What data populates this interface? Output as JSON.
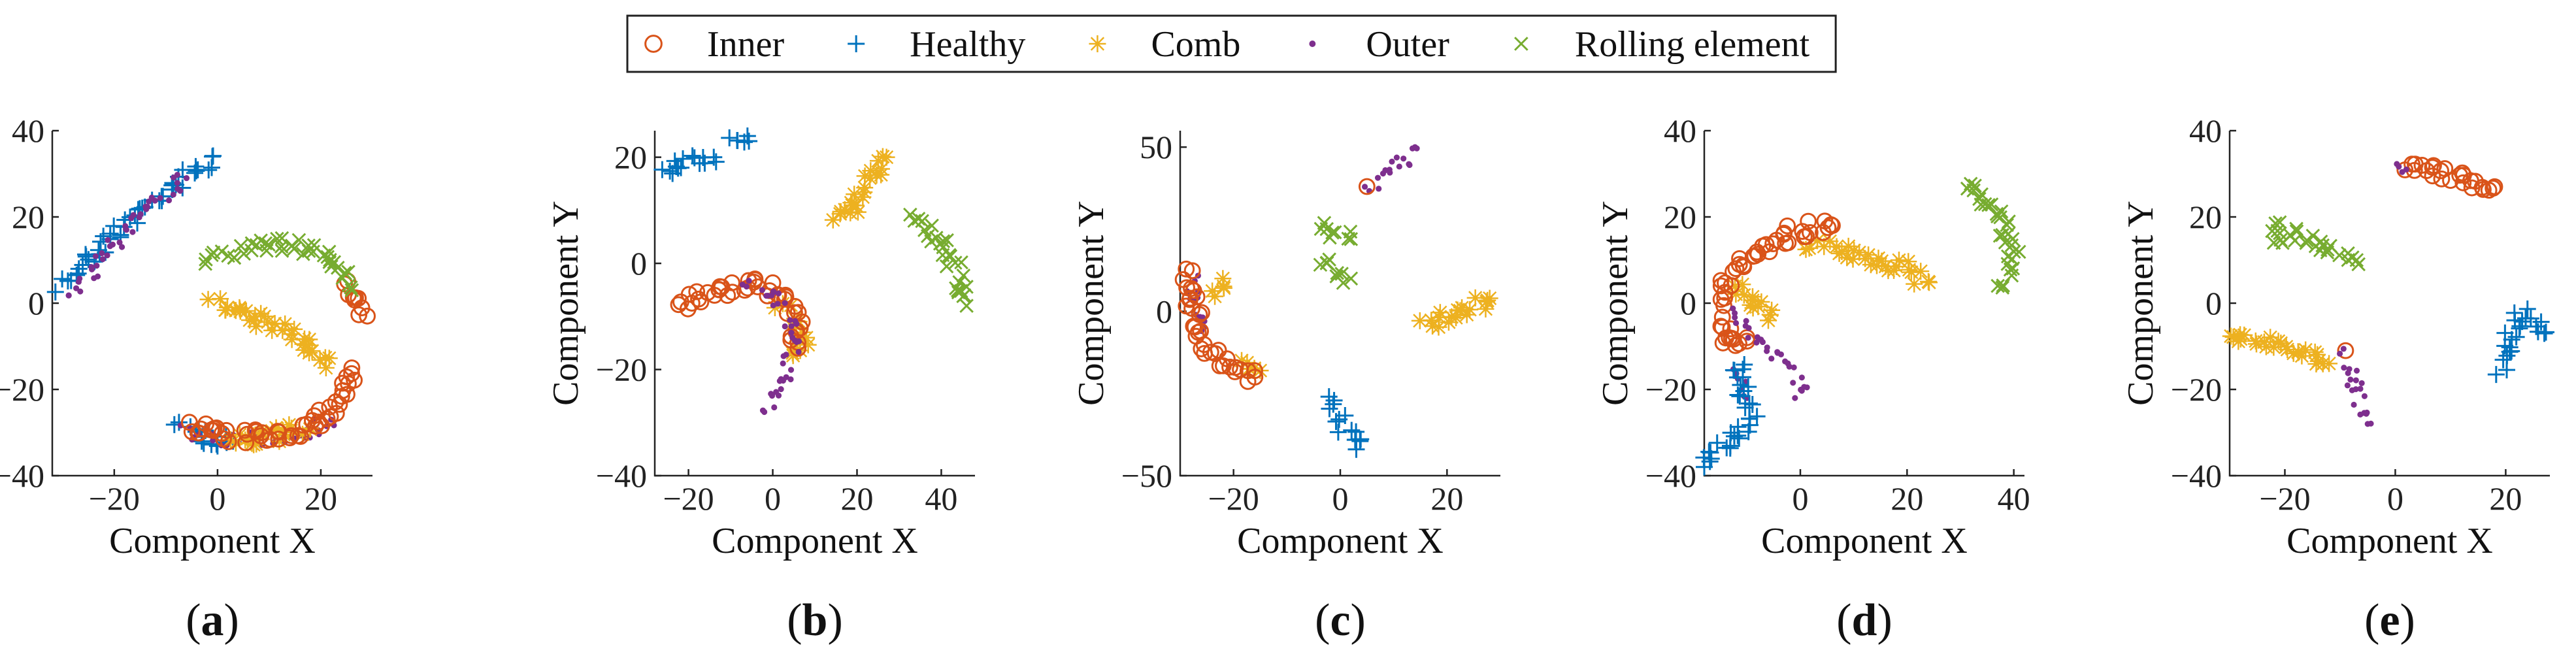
{
  "legend": {
    "position": "top-center",
    "entries": [
      {
        "name": "Inner",
        "marker": "circle-marker",
        "color": "#D95319"
      },
      {
        "name": "Healthy",
        "marker": "plus-marker",
        "color": "#0072BD"
      },
      {
        "name": "Comb",
        "marker": "asterisk-marker",
        "color": "#EDB120"
      },
      {
        "name": "Outer",
        "marker": "dot-marker",
        "color": "#7E2F8E"
      },
      {
        "name": "Rolling element",
        "marker": "cross-marker",
        "color": "#77AC30"
      }
    ]
  },
  "chart_data": [
    {
      "type": "scatter",
      "label": "(a)",
      "xlabel": "Component X",
      "ylabel": "Component Y",
      "xlim": [
        -32,
        30
      ],
      "ylim": [
        -40,
        40
      ],
      "xticks": [
        -20,
        0,
        20
      ],
      "yticks": [
        -40,
        -20,
        0,
        20,
        40
      ],
      "series": [
        {
          "name": "Healthy",
          "segments": [
            [
              [
                -30,
                4
              ],
              [
                -24,
                12
              ],
              [
                -16,
                20
              ],
              [
                -10,
                26
              ],
              [
                -4,
                31
              ],
              [
                -1,
                34
              ]
            ],
            [
              [
                -7,
                -29
              ],
              [
                -2,
                -31
              ],
              [
                3,
                -32
              ]
            ]
          ]
        },
        {
          "name": "Outer",
          "segments": [
            [
              [
                -28,
                2
              ],
              [
                -22,
                12
              ],
              [
                -14,
                22
              ],
              [
                -6,
                29
              ]
            ],
            [
              [
                -6,
                -30
              ],
              [
                4,
                -32
              ],
              [
                14,
                -31
              ],
              [
                22,
                -27
              ]
            ]
          ]
        },
        {
          "name": "Comb",
          "segments": [
            [
              [
                -1,
                0
              ],
              [
                6,
                -3
              ],
              [
                12,
                -6
              ],
              [
                17,
                -9
              ],
              [
                21,
                -15
              ]
            ],
            [
              [
                2,
                -32
              ],
              [
                10,
                -31
              ],
              [
                18,
                -29
              ]
            ]
          ]
        },
        {
          "name": "Inner",
          "segments": [
            [
              [
                -6,
                -28
              ],
              [
                2,
                -31
              ],
              [
                8,
                -31
              ],
              [
                14,
                -30
              ],
              [
                20,
                -27
              ],
              [
                24,
                -22
              ],
              [
                26,
                -15
              ]
            ],
            [
              [
                25,
                4
              ],
              [
                27,
                0
              ],
              [
                29,
                -3
              ]
            ]
          ]
        },
        {
          "name": "Rolling element",
          "segments": [
            [
              [
                -2,
                10
              ],
              [
                4,
                12
              ],
              [
                10,
                14
              ],
              [
                16,
                13
              ],
              [
                21,
                11
              ],
              [
                25,
                7
              ],
              [
                26,
                3
              ]
            ]
          ]
        }
      ]
    },
    {
      "type": "scatter",
      "label": "(b)",
      "xlabel": "Component X",
      "ylabel": "Component Y",
      "xlim": [
        -28,
        48
      ],
      "ylim": [
        -40,
        25
      ],
      "xticks": [
        -20,
        0,
        20,
        40
      ],
      "yticks": [
        -40,
        -20,
        0,
        20
      ],
      "series": [
        {
          "name": "Healthy",
          "segments": [
            [
              [
                -26,
                18
              ],
              [
                -20,
                19
              ],
              [
                -14,
                20
              ]
            ],
            [
              [
                -10,
                22
              ],
              [
                -6,
                24
              ]
            ]
          ]
        },
        {
          "name": "Comb",
          "segments": [
            [
              [
                15,
                8
              ],
              [
                20,
                12
              ],
              [
                25,
                18
              ],
              [
                27,
                20
              ]
            ],
            [
              [
                2,
                -8
              ],
              [
                5,
                -11
              ],
              [
                7,
                -13
              ]
            ],
            [
              [
                6,
                -18
              ],
              [
                8,
                -14
              ]
            ]
          ]
        },
        {
          "name": "Rolling element",
          "segments": [
            [
              [
                33,
                9
              ],
              [
                38,
                6
              ],
              [
                42,
                1
              ],
              [
                45,
                -4
              ],
              [
                46,
                -8
              ]
            ]
          ]
        },
        {
          "name": "Inner",
          "segments": [
            [
              [
                -22,
                -8
              ],
              [
                -16,
                -6
              ],
              [
                -10,
                -5
              ],
              [
                -4,
                -4
              ],
              [
                0,
                -5
              ],
              [
                4,
                -7
              ],
              [
                6,
                -12
              ],
              [
                6,
                -16
              ]
            ]
          ]
        },
        {
          "name": "Outer",
          "segments": [
            [
              [
                -6,
                -4
              ],
              [
                0,
                -6
              ],
              [
                4,
                -10
              ],
              [
                5,
                -16
              ],
              [
                3,
                -22
              ],
              [
                -2,
                -28
              ]
            ]
          ]
        }
      ]
    },
    {
      "type": "scatter",
      "label": "(c)",
      "xlabel": "Component X",
      "ylabel": "Component Y",
      "xlim": [
        -30,
        30
      ],
      "ylim": [
        -50,
        55
      ],
      "xticks": [
        -20,
        0,
        20
      ],
      "yticks": [
        -50,
        0,
        50
      ],
      "series": [
        {
          "name": "Outer",
          "segments": [
            [
              [
                5,
                38
              ],
              [
                9,
                42
              ],
              [
                13,
                47
              ],
              [
                14,
                50
              ]
            ],
            [
              [
                -28,
                10
              ],
              [
                -27,
                2
              ],
              [
                -26,
                -6
              ]
            ]
          ]
        },
        {
          "name": "Rolling element",
          "segments": [
            [
              [
                -4,
                26
              ],
              [
                -1,
                24
              ],
              [
                2,
                22
              ]
            ],
            [
              [
                -3,
                16
              ],
              [
                0,
                12
              ],
              [
                2,
                10
              ]
            ]
          ]
        },
        {
          "name": "Comb",
          "segments": [
            [
              [
                16,
                -4
              ],
              [
                20,
                -2
              ],
              [
                24,
                1
              ],
              [
                28,
                4
              ]
            ],
            [
              [
                -24,
                6
              ],
              [
                -22,
                10
              ]
            ],
            [
              [
                -18,
                -14
              ],
              [
                -15,
                -18
              ]
            ]
          ]
        },
        {
          "name": "Healthy",
          "segments": [
            [
              [
                -2,
                -28
              ],
              [
                0,
                -33
              ],
              [
                2,
                -38
              ],
              [
                3,
                -42
              ]
            ]
          ]
        },
        {
          "name": "Inner",
          "segments": [
            [
              [
                -29,
                12
              ],
              [
                -28,
                4
              ],
              [
                -27,
                -2
              ],
              [
                -26,
                -8
              ],
              [
                -23,
                -14
              ],
              [
                -20,
                -18
              ],
              [
                -16,
                -20
              ]
            ],
            [
              [
                5,
                38
              ]
            ]
          ]
        }
      ]
    },
    {
      "type": "scatter",
      "label": "(d)",
      "xlabel": "Component X",
      "ylabel": "Component Y",
      "xlim": [
        -18,
        42
      ],
      "ylim": [
        -40,
        40
      ],
      "xticks": [
        0,
        20,
        40
      ],
      "yticks": [
        -40,
        -20,
        0,
        20,
        40
      ],
      "series": [
        {
          "name": "Rolling element",
          "segments": [
            [
              [
                31,
                28
              ],
              [
                35,
                24
              ],
              [
                38,
                18
              ],
              [
                40,
                12
              ],
              [
                39,
                7
              ],
              [
                37,
                4
              ]
            ]
          ]
        },
        {
          "name": "Comb",
          "segments": [
            [
              [
                2,
                14
              ],
              [
                8,
                12
              ],
              [
                14,
                10
              ],
              [
                20,
                8
              ],
              [
                24,
                5
              ]
            ],
            [
              [
                -12,
                4
              ],
              [
                -8,
                0
              ],
              [
                -6,
                -4
              ]
            ]
          ]
        },
        {
          "name": "Inner",
          "segments": [
            [
              [
                -15,
                0
              ],
              [
                -13,
                6
              ],
              [
                -10,
                10
              ],
              [
                -6,
                14
              ],
              [
                -2,
                16
              ],
              [
                3,
                18
              ],
              [
                6,
                18
              ]
            ],
            [
              [
                -14,
                -4
              ],
              [
                -13,
                -10
              ],
              [
                -10,
                -8
              ]
            ]
          ]
        },
        {
          "name": "Outer",
          "segments": [
            [
              [
                -12,
                -2
              ],
              [
                -10,
                -6
              ],
              [
                -6,
                -10
              ],
              [
                -2,
                -14
              ],
              [
                0,
                -18
              ],
              [
                -1,
                -22
              ]
            ],
            [
              [
                -12,
                -16
              ],
              [
                -10,
                -22
              ]
            ]
          ]
        },
        {
          "name": "Healthy",
          "segments": [
            [
              [
                -12,
                -14
              ],
              [
                -11,
                -18
              ],
              [
                -10,
                -22
              ],
              [
                -9,
                -26
              ],
              [
                -12,
                -30
              ],
              [
                -15,
                -34
              ],
              [
                -18,
                -38
              ]
            ]
          ]
        }
      ]
    },
    {
      "type": "scatter",
      "label": "(e)",
      "xlabel": "Component X",
      "ylabel": "Component Y",
      "xlim": [
        -30,
        28
      ],
      "ylim": [
        -40,
        40
      ],
      "xticks": [
        -20,
        0,
        20
      ],
      "yticks": [
        -40,
        -20,
        0,
        20,
        40
      ],
      "series": [
        {
          "name": "Inner",
          "segments": [
            [
              [
                2,
                32
              ],
              [
                6,
                31
              ],
              [
                10,
                30
              ],
              [
                14,
                28
              ],
              [
                18,
                27
              ]
            ],
            [
              [
                -9,
                -11
              ]
            ]
          ]
        },
        {
          "name": "Rolling element",
          "segments": [
            [
              [
                -22,
                18
              ],
              [
                -18,
                16
              ],
              [
                -14,
                14
              ],
              [
                -10,
                12
              ],
              [
                -7,
                10
              ]
            ],
            [
              [
                -21,
                16
              ],
              [
                -22,
                14
              ]
            ]
          ]
        },
        {
          "name": "Healthy",
          "segments": [
            [
              [
                19,
                -15
              ],
              [
                20,
                -11
              ],
              [
                21,
                -7
              ],
              [
                23,
                -3
              ],
              [
                25,
                -5
              ],
              [
                27,
                -7
              ]
            ]
          ]
        },
        {
          "name": "Comb",
          "segments": [
            [
              [
                -30,
                -7
              ],
              [
                -25,
                -8
              ],
              [
                -20,
                -10
              ],
              [
                -16,
                -12
              ],
              [
                -12,
                -14
              ]
            ]
          ]
        },
        {
          "name": "Outer",
          "segments": [
            [
              [
                -10,
                -12
              ],
              [
                -8,
                -16
              ],
              [
                -7,
                -20
              ],
              [
                -6,
                -24
              ],
              [
                -5,
                -28
              ]
            ],
            [
              [
                0,
                32
              ],
              [
                2,
                31
              ]
            ]
          ]
        }
      ]
    }
  ]
}
